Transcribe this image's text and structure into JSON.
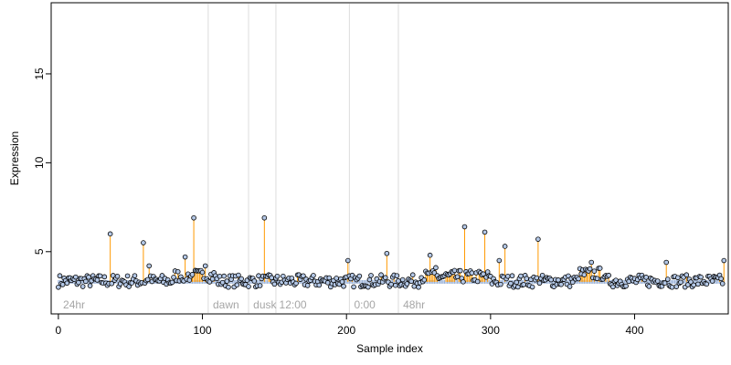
{
  "chart_data": {
    "type": "scatter",
    "title": "",
    "xlabel": "Sample index",
    "ylabel": "Expression",
    "xlim": [
      -5,
      465
    ],
    "ylim": [
      1.5,
      19.0
    ],
    "x_ticks": [
      0,
      100,
      200,
      300,
      400
    ],
    "y_ticks": [
      5,
      10,
      15
    ],
    "baseline": 3.3,
    "grid": false,
    "legend": "none",
    "colors": {
      "point_fill": "#b3c7e6",
      "point_stroke": "#000000",
      "stem": "#ff9900",
      "baseline_band": "#9bb3d9",
      "divider": "#dcdcdc",
      "annotation": "#a6a6a6"
    },
    "dividers": [
      104,
      132,
      151,
      202,
      236
    ],
    "annotations": [
      {
        "x": 2,
        "label": "24hr"
      },
      {
        "x": 106,
        "label": "dawn"
      },
      {
        "x": 134,
        "label": "dusk"
      },
      {
        "x": 152,
        "label": "12:00"
      },
      {
        "x": 204,
        "label": "0:00"
      },
      {
        "x": 238,
        "label": "48hr"
      }
    ],
    "peaks": [
      {
        "x": 36,
        "y": 6.0
      },
      {
        "x": 59,
        "y": 5.5
      },
      {
        "x": 94,
        "y": 6.9
      },
      {
        "x": 143,
        "y": 6.9
      },
      {
        "x": 228,
        "y": 4.9
      },
      {
        "x": 258,
        "y": 4.8
      },
      {
        "x": 282,
        "y": 6.8
      },
      {
        "x": 296,
        "y": 6.1
      },
      {
        "x": 310,
        "y": 5.3
      },
      {
        "x": 333,
        "y": 5.7
      },
      {
        "x": 201,
        "y": 4.5
      },
      {
        "x": 422,
        "y": 4.4
      },
      {
        "x": 370,
        "y": 4.4
      },
      {
        "x": 462,
        "y": 4.5
      },
      {
        "x": 88,
        "y": 4.7
      },
      {
        "x": 102,
        "y": 4.2
      },
      {
        "x": 63,
        "y": 4.2
      },
      {
        "x": 262,
        "y": 4.1
      },
      {
        "x": 306,
        "y": 4.5
      },
      {
        "x": 282,
        "y": 6.4
      }
    ],
    "noise_seed": 7,
    "noise_count": 463,
    "noise_mean": 3.35,
    "noise_spread": 0.35
  }
}
